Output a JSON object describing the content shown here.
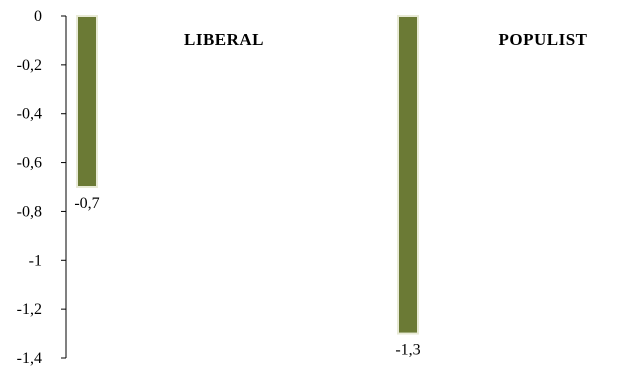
{
  "chart_data": {
    "type": "bar",
    "categories": [
      "LIBERAL",
      "POPULIST"
    ],
    "values": [
      -0.7,
      -1.3
    ],
    "data_labels": [
      "-0,7",
      "-1,3"
    ],
    "ylim": [
      -1.4,
      0
    ],
    "yticks": [
      0,
      -0.2,
      -0.4,
      -0.6,
      -0.8,
      -1,
      -1.2,
      -1.4
    ],
    "ytick_labels": [
      "0",
      "-0,2",
      "-0,4",
      "-0,6",
      "-0,8",
      "-1",
      "-1,2",
      "-1,4"
    ],
    "grid": false,
    "legend": "none",
    "bar_color": "#6b7a35",
    "title": "",
    "xlabel": "",
    "ylabel": ""
  }
}
